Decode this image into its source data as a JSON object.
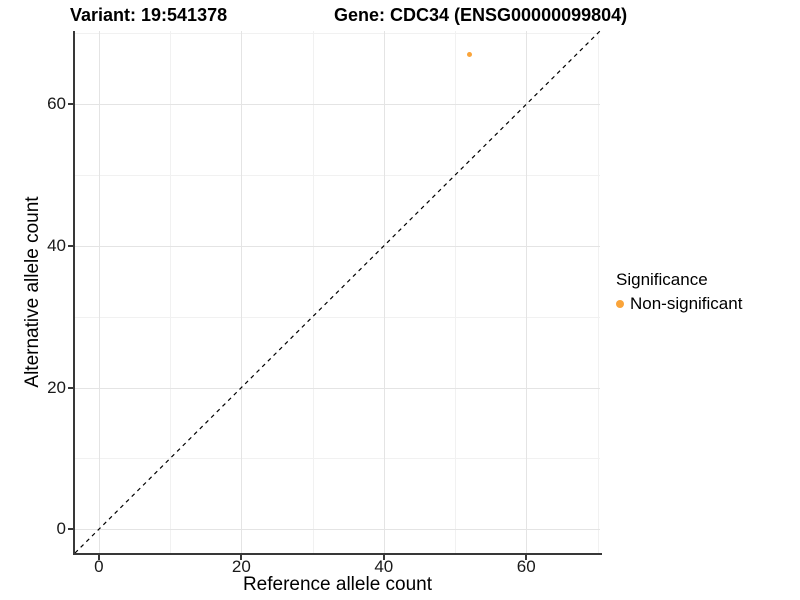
{
  "titles": {
    "left": "Variant: 19:541378",
    "right": "Gene: CDC34 (ENSG00000099804)"
  },
  "chart_data": {
    "type": "scatter",
    "title_left": "Variant: 19:541378",
    "title_right": "Gene: CDC34 (ENSG00000099804)",
    "xlabel": "Reference allele count",
    "ylabel": "Alternative allele count",
    "xlim": [
      -3.35,
      70.35
    ],
    "ylim": [
      -3.35,
      70.35
    ],
    "x_major_ticks": [
      0,
      20,
      40,
      60
    ],
    "x_minor_ticks": [
      10,
      30,
      50,
      70
    ],
    "y_major_ticks": [
      0,
      20,
      40,
      60
    ],
    "y_minor_ticks": [
      10,
      30,
      50,
      70
    ],
    "grid": true,
    "points": [
      {
        "x": 52,
        "y": 67,
        "series": "Non-significant"
      }
    ],
    "series": [
      {
        "name": "Non-significant",
        "color": "#FAA43A"
      }
    ],
    "abline": {
      "slope": 1,
      "intercept": 0,
      "style": "dashed",
      "dash": "4 4",
      "color": "#000000"
    },
    "legend": {
      "title": "Significance",
      "position": "right",
      "items": [
        {
          "label": "Non-significant",
          "color": "#FAA43A"
        }
      ]
    }
  },
  "colors": {
    "accent_orange": "#FAA43A",
    "axis_line": "#383838",
    "grid_major": "#e4e4e4",
    "grid_minor": "#f1f1f1",
    "background": "#ffffff"
  }
}
